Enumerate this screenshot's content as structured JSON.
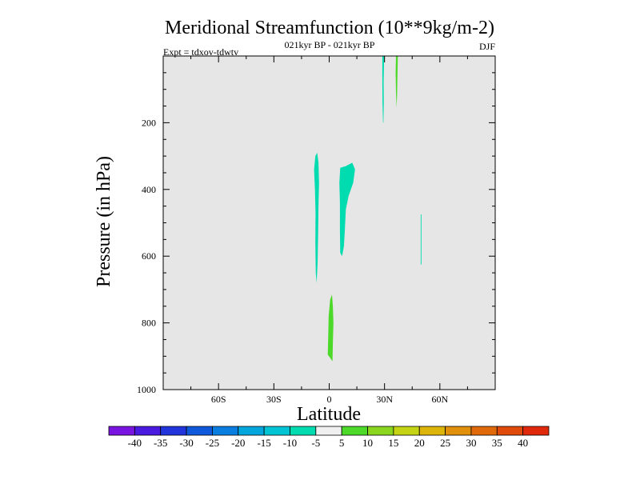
{
  "chart_data": {
    "type": "contour",
    "title": "Meridional Streamfunction (10**9kg/m-2)",
    "subtitle": "021kyr BP - 021kyr BP",
    "left_label": "Expt = tdxov-tdwtv",
    "right_label": "DJF",
    "xlabel": "Latitude",
    "ylabel": "Pressure (in hPa)",
    "xlim": [
      -90,
      90
    ],
    "ylim": [
      1000,
      0
    ],
    "x_ticks": [
      {
        "value": -60,
        "label": "60S"
      },
      {
        "value": -30,
        "label": "30S"
      },
      {
        "value": 0,
        "label": "0"
      },
      {
        "value": 30,
        "label": "30N"
      },
      {
        "value": 60,
        "label": "60N"
      }
    ],
    "y_ticks": [
      {
        "value": 200,
        "label": "200"
      },
      {
        "value": 400,
        "label": "400"
      },
      {
        "value": 600,
        "label": "600"
      },
      {
        "value": 800,
        "label": "800"
      },
      {
        "value": 1000,
        "label": "1000"
      }
    ],
    "background_color": "#e6e6e6",
    "colorbar": {
      "levels": [
        "-40",
        "-35",
        "-30",
        "-25",
        "-20",
        "-15",
        "-10",
        "-5",
        "5",
        "10",
        "15",
        "20",
        "25",
        "30",
        "35",
        "40"
      ],
      "colors": [
        "#7a14e0",
        "#4b1ae0",
        "#2235dc",
        "#0f58dc",
        "#0a7ee0",
        "#00a6dc",
        "#00c4d4",
        "#00dcb0",
        "#f0f0f0",
        "#4cd92a",
        "#8ad61e",
        "#c4d414",
        "#dcb40a",
        "#e0900a",
        "#e06a0a",
        "#e04a0a",
        "#e0280a"
      ]
    },
    "regions": [
      {
        "name": "tropical-upper-negative-a",
        "value_range": "-10 to -5",
        "color": "#00dcb0",
        "polygon": [
          [
            -6.5,
            290
          ],
          [
            -5.8,
            320
          ],
          [
            -5.5,
            380
          ],
          [
            -5.8,
            450
          ],
          [
            -6,
            530
          ],
          [
            -6.3,
            620
          ],
          [
            -6.8,
            680
          ],
          [
            -7.3,
            650
          ],
          [
            -7.5,
            560
          ],
          [
            -7.4,
            470
          ],
          [
            -7.7,
            400
          ],
          [
            -8.2,
            340
          ],
          [
            -7.5,
            300
          ]
        ]
      },
      {
        "name": "tropical-upper-negative-b",
        "value_range": "-10 to -5",
        "color": "#00dcb0",
        "polygon": [
          [
            6,
            335
          ],
          [
            9,
            330
          ],
          [
            12.5,
            320
          ],
          [
            14,
            340
          ],
          [
            13,
            380
          ],
          [
            10.5,
            420
          ],
          [
            9,
            460
          ],
          [
            8.5,
            520
          ],
          [
            8,
            570
          ],
          [
            7,
            600
          ],
          [
            6,
            590
          ],
          [
            5.8,
            520
          ],
          [
            5.8,
            440
          ],
          [
            5.5,
            380
          ]
        ]
      },
      {
        "name": "lower-positive",
        "value_range": "5 to 10",
        "color": "#4cd92a",
        "polygon": [
          [
            1.5,
            715
          ],
          [
            2,
            750
          ],
          [
            2.3,
            800
          ],
          [
            2,
            860
          ],
          [
            1.8,
            915
          ],
          [
            0.5,
            905
          ],
          [
            -0.8,
            895
          ],
          [
            -0.5,
            840
          ],
          [
            -0.3,
            780
          ],
          [
            0.5,
            730
          ]
        ]
      },
      {
        "name": "upper-negative-30N",
        "value_range": "-10 to -5",
        "color": "#00dcb0",
        "polygon": [
          [
            28.8,
            0
          ],
          [
            29.8,
            0
          ],
          [
            29.5,
            80
          ],
          [
            29.6,
            140
          ],
          [
            29.4,
            200
          ],
          [
            29.2,
            200
          ],
          [
            28.9,
            140
          ],
          [
            28.8,
            70
          ]
        ]
      },
      {
        "name": "upper-positive-37N",
        "value_range": "5 to 10",
        "color": "#4cd92a",
        "polygon": [
          [
            36.2,
            0
          ],
          [
            37.2,
            0
          ],
          [
            37,
            60
          ],
          [
            36.8,
            120
          ],
          [
            36.5,
            155
          ],
          [
            36.2,
            110
          ],
          [
            36,
            50
          ]
        ]
      },
      {
        "name": "mid-negative-50N",
        "value_range": "-10 to -5",
        "color": "#00dcb0",
        "polygon": [
          [
            49.6,
            475
          ],
          [
            50,
            475
          ],
          [
            50,
            625
          ],
          [
            49.6,
            625
          ]
        ]
      }
    ]
  }
}
